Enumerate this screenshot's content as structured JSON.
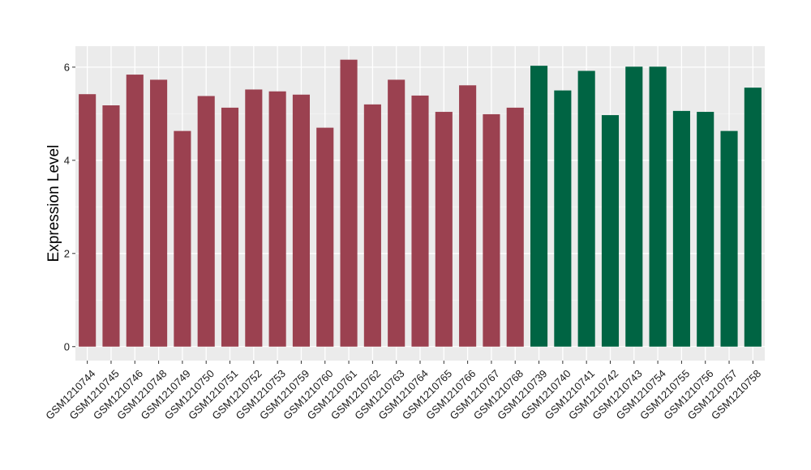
{
  "chart_data": {
    "type": "bar",
    "title": "",
    "xlabel": "",
    "ylabel": "Expression Level",
    "ylim": [
      -0.3,
      6.45
    ],
    "yticks": [
      0,
      2,
      4,
      6
    ],
    "grid": true,
    "legend": "none",
    "categories": [
      "GSM1210744",
      "GSM1210745",
      "GSM1210746",
      "GSM1210748",
      "GSM1210749",
      "GSM1210750",
      "GSM1210751",
      "GSM1210752",
      "GSM1210753",
      "GSM1210759",
      "GSM1210760",
      "GSM1210761",
      "GSM1210762",
      "GSM1210763",
      "GSM1210764",
      "GSM1210765",
      "GSM1210766",
      "GSM1210767",
      "GSM1210768",
      "GSM1210739",
      "GSM1210740",
      "GSM1210741",
      "GSM1210742",
      "GSM1210743",
      "GSM1210754",
      "GSM1210755",
      "GSM1210756",
      "GSM1210757",
      "GSM1210758"
    ],
    "values": [
      5.42,
      5.18,
      5.84,
      5.73,
      4.63,
      5.38,
      5.13,
      5.52,
      5.48,
      5.41,
      4.7,
      6.16,
      5.2,
      5.73,
      5.39,
      5.04,
      5.61,
      4.99,
      5.13,
      6.03,
      5.5,
      5.92,
      4.97,
      6.01,
      6.01,
      5.06,
      5.04,
      4.63,
      5.56
    ],
    "groups": [
      0,
      0,
      0,
      0,
      0,
      0,
      0,
      0,
      0,
      0,
      0,
      0,
      0,
      0,
      0,
      0,
      0,
      0,
      0,
      1,
      1,
      1,
      1,
      1,
      1,
      1,
      1,
      1,
      1
    ],
    "colors": {
      "group_0": "#9b4150",
      "group_1": "#006443",
      "panel_background": "#ebebeb",
      "grid_major": "#ffffff",
      "grid_minor": "#f5f5f5"
    }
  }
}
